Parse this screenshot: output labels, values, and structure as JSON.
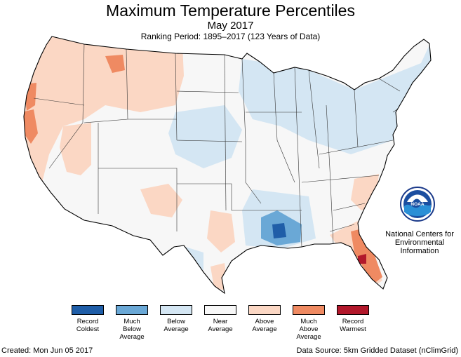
{
  "title": "Maximum Temperature Percentiles",
  "subtitle": "May 2017",
  "ranking_period": "Ranking Period: 1895–2017 (123 Years of Data)",
  "agency": {
    "logo_text": "NOAA",
    "name_line1": "National Centers for",
    "name_line2": "Environmental",
    "name_line3": "Information"
  },
  "legend": [
    {
      "label_lines": [
        "Record",
        "Coldest"
      ],
      "color": "#1f5ea8"
    },
    {
      "label_lines": [
        "Much",
        "Below",
        "Average"
      ],
      "color": "#6aa8d6"
    },
    {
      "label_lines": [
        "Below",
        "Average"
      ],
      "color": "#d4e6f3"
    },
    {
      "label_lines": [
        "Near",
        "Average"
      ],
      "color": "#f7f7f7"
    },
    {
      "label_lines": [
        "Above",
        "Average"
      ],
      "color": "#fbd7c4"
    },
    {
      "label_lines": [
        "Much",
        "Above",
        "Average"
      ],
      "color": "#ef8a62"
    },
    {
      "label_lines": [
        "Record",
        "Warmest"
      ],
      "color": "#b2182b"
    }
  ],
  "footer": {
    "created": "Created: Mon Jun 05 2017",
    "source": "Data Source: 5km Gridded Dataset (nClimGrid)"
  }
}
